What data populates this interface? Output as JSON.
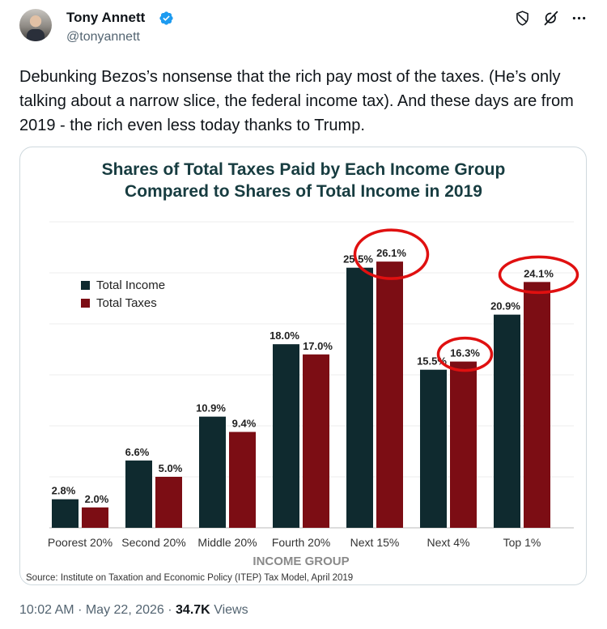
{
  "author": {
    "name": "Tony Annett",
    "handle": "@tonyannett",
    "verified_icon": "verified-badge-icon",
    "avatar_icon": "profile-photo"
  },
  "top_icons": [
    "shield-icon",
    "grok-icon",
    "more-options-icon"
  ],
  "tweet": {
    "text": "Debunking Bezos’s nonsense that the rich pay most of the taxes. (He’s only talking about a narrow slice, the federal income tax). And these days are from 2019 - the rich even less today thanks to Trump."
  },
  "meta": {
    "time": "10:02 AM",
    "date": "May 22, 2026",
    "views_count": "34.7K",
    "views_label": "Views",
    "separator": "·"
  },
  "colors": {
    "income": "#0f2a2f",
    "taxes": "#7c0d14",
    "highlight": "#e01010",
    "title": "#173c40",
    "xlabel": "#8a8a8a"
  },
  "chart_data": {
    "type": "bar",
    "title": "Shares of Total Taxes Paid by Each Income Group Compared to Shares of Total Income in 2019",
    "title_lines": [
      "Shares of Total Taxes Paid by Each Income Group",
      "Compared to Shares of Total Income in 2019"
    ],
    "xlabel": "INCOME GROUP",
    "ylabel": "",
    "ylim": [
      0,
      30
    ],
    "grid": true,
    "legend_position": "top-left",
    "categories": [
      "Poorest 20%",
      "Second 20%",
      "Middle 20%",
      "Fourth 20%",
      "Next 15%",
      "Next 4%",
      "Top 1%"
    ],
    "series": [
      {
        "name": "Total Income",
        "values": [
          2.8,
          6.6,
          10.9,
          18.0,
          25.5,
          15.5,
          20.9
        ],
        "labels": [
          "2.8%",
          "6.6%",
          "10.9%",
          "18.0%",
          "25.5%",
          "15.5%",
          "20.9%"
        ]
      },
      {
        "name": "Total Taxes",
        "values": [
          2.0,
          5.0,
          9.4,
          17.0,
          26.1,
          16.3,
          24.1
        ],
        "labels": [
          "2.0%",
          "5.0%",
          "9.4%",
          "17.0%",
          "26.1%",
          "16.3%",
          "24.1%"
        ]
      }
    ],
    "annotations": [
      "red circle around 26.1%",
      "red circle around 16.3%",
      "red circle around 24.1%"
    ],
    "source": "Source: Institute on Taxation and Economic Policy (ITEP) Tax Model, April 2019"
  }
}
